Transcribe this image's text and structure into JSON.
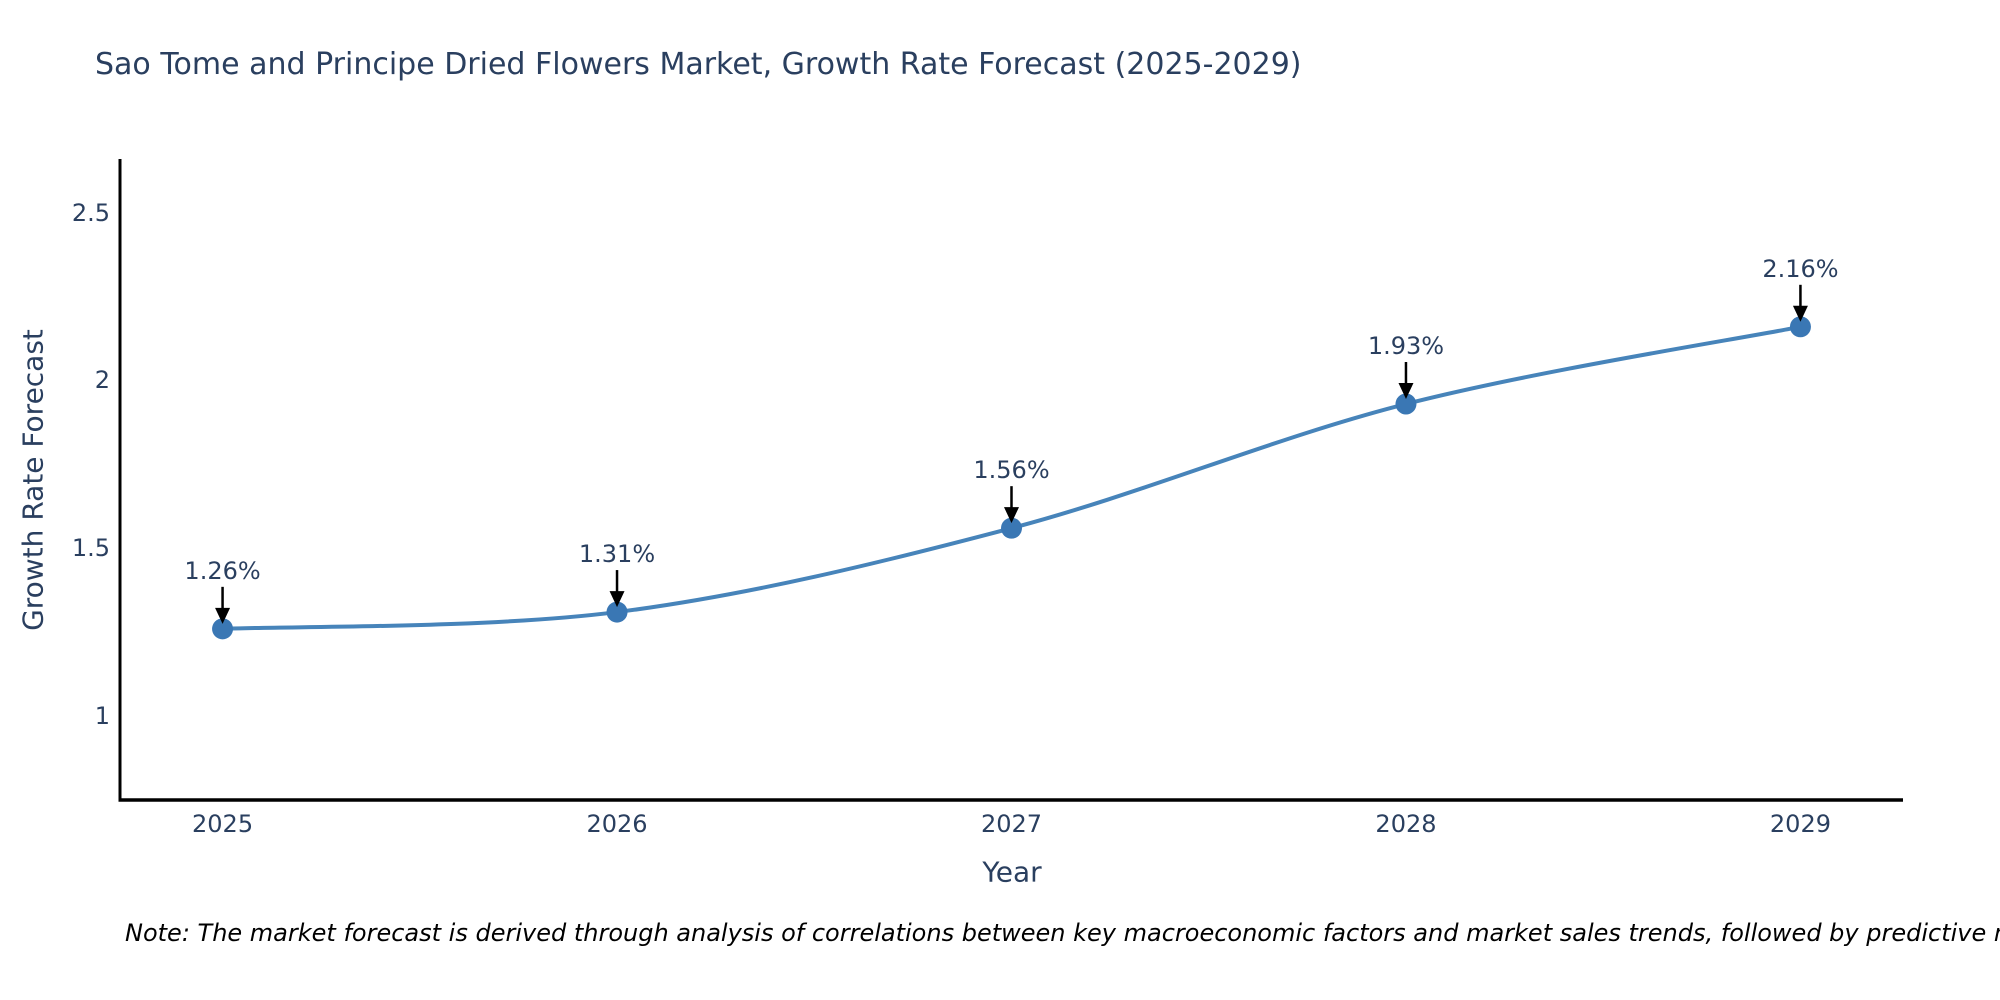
{
  "title": "Sao Tome and Principe Dried Flowers Market, Growth Rate Forecast (2025-2029)",
  "note": "Note: The market forecast is derived through analysis of correlations between key macroeconomic factors and market sales trends, followed by predictive modeling to project future sales",
  "chart_data": {
    "type": "line",
    "line_shape": "spline",
    "title": "Sao Tome and Principe Dried Flowers Market, Growth Rate Forecast (2025-2029)",
    "xlabel": "Year",
    "ylabel": "Growth Rate Forecast",
    "x": [
      2025,
      2026,
      2027,
      2028,
      2029
    ],
    "values": [
      1.26,
      1.31,
      1.56,
      1.93,
      2.16
    ],
    "point_labels": [
      "1.26%",
      "1.31%",
      "1.56%",
      "1.93%",
      "2.16%"
    ],
    "xtick_labels": [
      "2025",
      "2026",
      "2027",
      "2028",
      "2029"
    ],
    "yticks": [
      1,
      1.5,
      2,
      2.5
    ],
    "ytick_labels": [
      "1",
      "1.5",
      "2",
      "2.5"
    ],
    "xlim": [
      2024.74,
      2029.26
    ],
    "ylim": [
      0.75,
      2.66
    ],
    "grid": false,
    "legend": "none",
    "colors": {
      "line": "#4784ba",
      "marker": "#3a77b4",
      "axis": "#000000",
      "text": "#2a3f5f",
      "arrow": "#000000",
      "note_text": "#000000",
      "background": "#ffffff"
    }
  }
}
